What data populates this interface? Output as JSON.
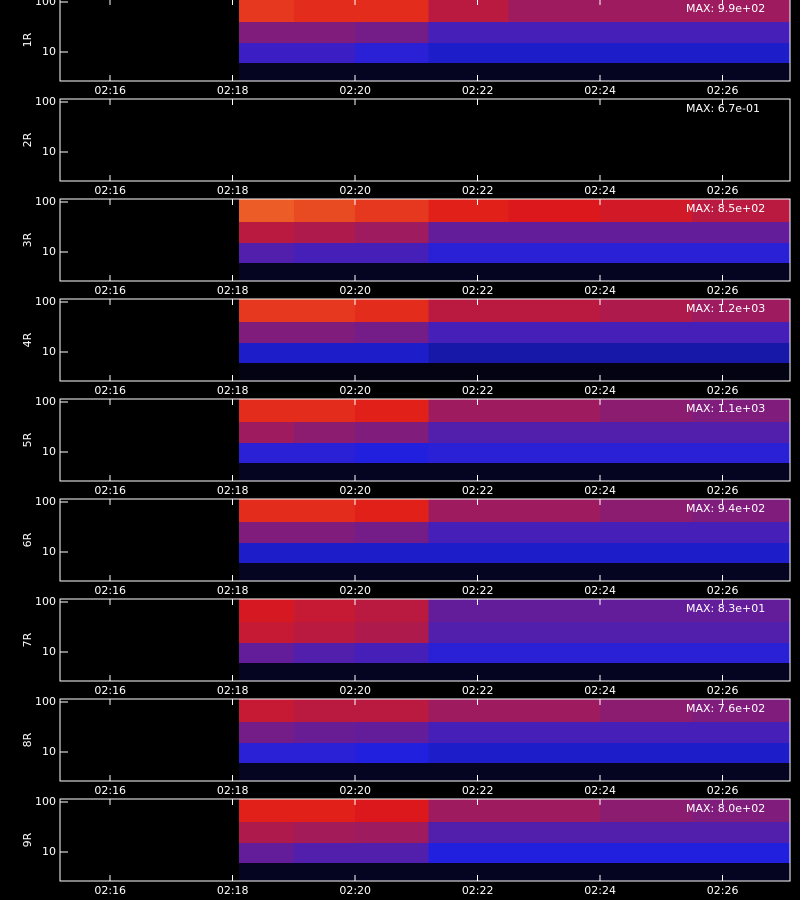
{
  "chart_data": [
    {
      "type": "heatmap",
      "ylabel": "1R",
      "annotation": "MAX: 9.9e+02",
      "xbins": [
        18.1,
        19.0,
        20.0,
        21.2,
        22.5,
        24.0,
        25.5,
        27.1
      ],
      "ybins": [
        2.6,
        6,
        15,
        40,
        115
      ],
      "z": [
        [
          0.05,
          0.05,
          0.05,
          0.05,
          0.05,
          0.05,
          0.05
        ],
        [
          0.38,
          0.38,
          0.35,
          0.3,
          0.3,
          0.3,
          0.3
        ],
        [
          0.5,
          0.5,
          0.48,
          0.4,
          0.4,
          0.4,
          0.4
        ],
        [
          0.72,
          0.7,
          0.7,
          0.6,
          0.55,
          0.55,
          0.55
        ]
      ],
      "xlim": [
        15.18,
        27.1
      ],
      "xticks": [
        {
          "value": 16,
          "label": "02:16"
        },
        {
          "value": 18,
          "label": "02:18"
        },
        {
          "value": 20,
          "label": "02:20"
        },
        {
          "value": 22,
          "label": "02:22"
        },
        {
          "value": 24,
          "label": "02:24"
        },
        {
          "value": 26,
          "label": "02:26"
        }
      ],
      "ylim": [
        2.6,
        115
      ],
      "yticks": [
        10,
        100
      ],
      "log_y": true,
      "colormap": [
        "#000000",
        "#2020e0",
        "#e01818",
        "#ffe040"
      ]
    },
    {
      "type": "heatmap",
      "ylabel": "2R",
      "annotation": "MAX: 6.7e-01",
      "xbins": [
        18.1,
        19.0,
        20.0,
        21.2,
        22.5,
        24.0,
        25.5,
        27.1
      ],
      "ybins": [
        2.6,
        6,
        15,
        40,
        115
      ],
      "z": [
        [
          0,
          0,
          0,
          0,
          0,
          0,
          0
        ],
        [
          0,
          0,
          0,
          0,
          0,
          0,
          0
        ],
        [
          0,
          0,
          0,
          0,
          0,
          0,
          0
        ],
        [
          0,
          0,
          0,
          0,
          0,
          0,
          0
        ]
      ],
      "xlim": [
        15.18,
        27.1
      ],
      "xticks": [
        {
          "value": 16,
          "label": "02:16"
        },
        {
          "value": 18,
          "label": "02:18"
        },
        {
          "value": 20,
          "label": "02:20"
        },
        {
          "value": 22,
          "label": "02:22"
        },
        {
          "value": 24,
          "label": "02:24"
        },
        {
          "value": 26,
          "label": "02:26"
        }
      ],
      "ylim": [
        2.6,
        115
      ],
      "yticks": [
        10,
        100
      ],
      "log_y": true,
      "colormap": [
        "#000000",
        "#2020e0",
        "#e01818",
        "#ffe040"
      ]
    },
    {
      "type": "heatmap",
      "ylabel": "3R",
      "annotation": "MAX: 8.5e+02",
      "xbins": [
        18.1,
        19.0,
        20.0,
        21.2,
        22.5,
        24.0,
        25.5,
        27.1
      ],
      "ybins": [
        2.6,
        6,
        15,
        40,
        115
      ],
      "z": [
        [
          0.05,
          0.05,
          0.05,
          0.05,
          0.05,
          0.05,
          0.05
        ],
        [
          0.42,
          0.4,
          0.4,
          0.35,
          0.35,
          0.35,
          0.35
        ],
        [
          0.6,
          0.58,
          0.55,
          0.45,
          0.45,
          0.45,
          0.45
        ],
        [
          0.78,
          0.75,
          0.72,
          0.68,
          0.66,
          0.64,
          0.6
        ]
      ],
      "xlim": [
        15.18,
        27.1
      ],
      "xticks": [
        {
          "value": 16,
          "label": "02:16"
        },
        {
          "value": 18,
          "label": "02:18"
        },
        {
          "value": 20,
          "label": "02:20"
        },
        {
          "value": 22,
          "label": "02:22"
        },
        {
          "value": 24,
          "label": "02:24"
        },
        {
          "value": 26,
          "label": "02:26"
        }
      ],
      "ylim": [
        2.6,
        115
      ],
      "yticks": [
        10,
        100
      ],
      "log_y": true,
      "colormap": [
        "#000000",
        "#2020e0",
        "#e01818",
        "#ffe040"
      ]
    },
    {
      "type": "heatmap",
      "ylabel": "4R",
      "annotation": "MAX: 1.2e+03",
      "xbins": [
        18.1,
        19.0,
        20.0,
        21.2,
        22.5,
        24.0,
        25.5,
        27.1
      ],
      "ybins": [
        2.6,
        6,
        15,
        40,
        115
      ],
      "z": [
        [
          0.03,
          0.03,
          0.03,
          0.03,
          0.03,
          0.03,
          0.03
        ],
        [
          0.3,
          0.3,
          0.3,
          0.25,
          0.25,
          0.25,
          0.25
        ],
        [
          0.5,
          0.5,
          0.48,
          0.4,
          0.4,
          0.4,
          0.4
        ],
        [
          0.72,
          0.72,
          0.7,
          0.6,
          0.6,
          0.58,
          0.55
        ]
      ],
      "xlim": [
        15.18,
        27.1
      ],
      "xticks": [
        {
          "value": 16,
          "label": "02:16"
        },
        {
          "value": 18,
          "label": "02:18"
        },
        {
          "value": 20,
          "label": "02:20"
        },
        {
          "value": 22,
          "label": "02:22"
        },
        {
          "value": 24,
          "label": "02:24"
        },
        {
          "value": 26,
          "label": "02:26"
        }
      ],
      "ylim": [
        2.6,
        115
      ],
      "yticks": [
        10,
        100
      ],
      "log_y": true,
      "colormap": [
        "#000000",
        "#2020e0",
        "#e01818",
        "#ffe040"
      ]
    },
    {
      "type": "heatmap",
      "ylabel": "5R",
      "annotation": "MAX: 1.1e+03",
      "xbins": [
        18.1,
        19.0,
        20.0,
        21.2,
        22.5,
        24.0,
        25.5,
        27.1
      ],
      "ybins": [
        2.6,
        6,
        15,
        40,
        115
      ],
      "z": [
        [
          0.05,
          0.05,
          0.05,
          0.05,
          0.05,
          0.05,
          0.05
        ],
        [
          0.35,
          0.35,
          0.33,
          0.35,
          0.35,
          0.35,
          0.35
        ],
        [
          0.55,
          0.52,
          0.5,
          0.42,
          0.42,
          0.42,
          0.42
        ],
        [
          0.7,
          0.7,
          0.68,
          0.55,
          0.55,
          0.52,
          0.5
        ]
      ],
      "xlim": [
        15.18,
        27.1
      ],
      "xticks": [
        {
          "value": 16,
          "label": "02:16"
        },
        {
          "value": 18,
          "label": "02:18"
        },
        {
          "value": 20,
          "label": "02:20"
        },
        {
          "value": 22,
          "label": "02:22"
        },
        {
          "value": 24,
          "label": "02:24"
        },
        {
          "value": 26,
          "label": "02:26"
        }
      ],
      "ylim": [
        2.6,
        115
      ],
      "yticks": [
        10,
        100
      ],
      "log_y": true,
      "colormap": [
        "#000000",
        "#2020e0",
        "#e01818",
        "#ffe040"
      ]
    },
    {
      "type": "heatmap",
      "ylabel": "6R",
      "annotation": "MAX: 9.4e+02",
      "xbins": [
        18.1,
        19.0,
        20.0,
        21.2,
        22.5,
        24.0,
        25.5,
        27.1
      ],
      "ybins": [
        2.6,
        6,
        15,
        40,
        115
      ],
      "z": [
        [
          0.05,
          0.05,
          0.05,
          0.05,
          0.05,
          0.05,
          0.05
        ],
        [
          0.3,
          0.3,
          0.3,
          0.3,
          0.3,
          0.3,
          0.3
        ],
        [
          0.5,
          0.5,
          0.48,
          0.4,
          0.4,
          0.4,
          0.4
        ],
        [
          0.7,
          0.7,
          0.68,
          0.55,
          0.55,
          0.52,
          0.5
        ]
      ],
      "xlim": [
        15.18,
        27.1
      ],
      "xticks": [
        {
          "value": 16,
          "label": "02:16"
        },
        {
          "value": 18,
          "label": "02:18"
        },
        {
          "value": 20,
          "label": "02:20"
        },
        {
          "value": 22,
          "label": "02:22"
        },
        {
          "value": 24,
          "label": "02:24"
        },
        {
          "value": 26,
          "label": "02:26"
        }
      ],
      "ylim": [
        2.6,
        115
      ],
      "yticks": [
        10,
        100
      ],
      "log_y": true,
      "colormap": [
        "#000000",
        "#2020e0",
        "#e01818",
        "#ffe040"
      ]
    },
    {
      "type": "heatmap",
      "ylabel": "7R",
      "annotation": "MAX: 8.3e+01",
      "xbins": [
        18.1,
        19.0,
        20.0,
        21.2,
        22.5,
        24.0,
        25.5,
        27.1
      ],
      "ybins": [
        2.6,
        6,
        15,
        40,
        115
      ],
      "z": [
        [
          0.05,
          0.05,
          0.05,
          0.05,
          0.05,
          0.05,
          0.05
        ],
        [
          0.45,
          0.42,
          0.4,
          0.35,
          0.35,
          0.35,
          0.35
        ],
        [
          0.62,
          0.6,
          0.58,
          0.42,
          0.42,
          0.42,
          0.42
        ],
        [
          0.65,
          0.62,
          0.6,
          0.45,
          0.45,
          0.45,
          0.45
        ]
      ],
      "xlim": [
        15.18,
        27.1
      ],
      "xticks": [
        {
          "value": 16,
          "label": "02:16"
        },
        {
          "value": 18,
          "label": "02:18"
        },
        {
          "value": 20,
          "label": "02:20"
        },
        {
          "value": 22,
          "label": "02:22"
        },
        {
          "value": 24,
          "label": "02:24"
        },
        {
          "value": 26,
          "label": "02:26"
        }
      ],
      "ylim": [
        2.6,
        115
      ],
      "yticks": [
        10,
        100
      ],
      "log_y": true,
      "colormap": [
        "#000000",
        "#2020e0",
        "#e01818",
        "#ffe040"
      ]
    },
    {
      "type": "heatmap",
      "ylabel": "8R",
      "annotation": "MAX: 7.6e+02",
      "xbins": [
        18.1,
        19.0,
        20.0,
        21.2,
        22.5,
        24.0,
        25.5,
        27.1
      ],
      "ybins": [
        2.6,
        6,
        15,
        40,
        115
      ],
      "z": [
        [
          0.05,
          0.05,
          0.05,
          0.05,
          0.05,
          0.05,
          0.05
        ],
        [
          0.35,
          0.35,
          0.33,
          0.3,
          0.3,
          0.3,
          0.3
        ],
        [
          0.48,
          0.46,
          0.45,
          0.4,
          0.4,
          0.4,
          0.4
        ],
        [
          0.62,
          0.6,
          0.6,
          0.55,
          0.55,
          0.52,
          0.5
        ]
      ],
      "xlim": [
        15.18,
        27.1
      ],
      "xticks": [
        {
          "value": 16,
          "label": "02:16"
        },
        {
          "value": 18,
          "label": "02:18"
        },
        {
          "value": 20,
          "label": "02:20"
        },
        {
          "value": 22,
          "label": "02:22"
        },
        {
          "value": 24,
          "label": "02:24"
        },
        {
          "value": 26,
          "label": "02:26"
        }
      ],
      "ylim": [
        2.6,
        115
      ],
      "yticks": [
        10,
        100
      ],
      "log_y": true,
      "colormap": [
        "#000000",
        "#2020e0",
        "#e01818",
        "#ffe040"
      ]
    },
    {
      "type": "heatmap",
      "ylabel": "9R",
      "annotation": "MAX: 8.0e+02",
      "xbins": [
        18.1,
        19.0,
        20.0,
        21.2,
        22.5,
        24.0,
        25.5,
        27.1
      ],
      "ybins": [
        2.6,
        6,
        15,
        40,
        115
      ],
      "z": [
        [
          0.05,
          0.05,
          0.05,
          0.05,
          0.05,
          0.05,
          0.05
        ],
        [
          0.45,
          0.42,
          0.42,
          0.33,
          0.33,
          0.33,
          0.33
        ],
        [
          0.58,
          0.56,
          0.55,
          0.42,
          0.42,
          0.42,
          0.42
        ],
        [
          0.68,
          0.68,
          0.66,
          0.55,
          0.55,
          0.52,
          0.5
        ]
      ],
      "xlim": [
        15.18,
        27.1
      ],
      "xticks": [
        {
          "value": 16,
          "label": "02:16"
        },
        {
          "value": 18,
          "label": "02:18"
        },
        {
          "value": 20,
          "label": "02:20"
        },
        {
          "value": 22,
          "label": "02:22"
        },
        {
          "value": 24,
          "label": "02:24"
        },
        {
          "value": 26,
          "label": "02:26"
        }
      ],
      "ylim": [
        2.6,
        115
      ],
      "yticks": [
        10,
        100
      ],
      "log_y": true,
      "colormap": [
        "#000000",
        "#2020e0",
        "#e01818",
        "#ffe040"
      ]
    }
  ]
}
